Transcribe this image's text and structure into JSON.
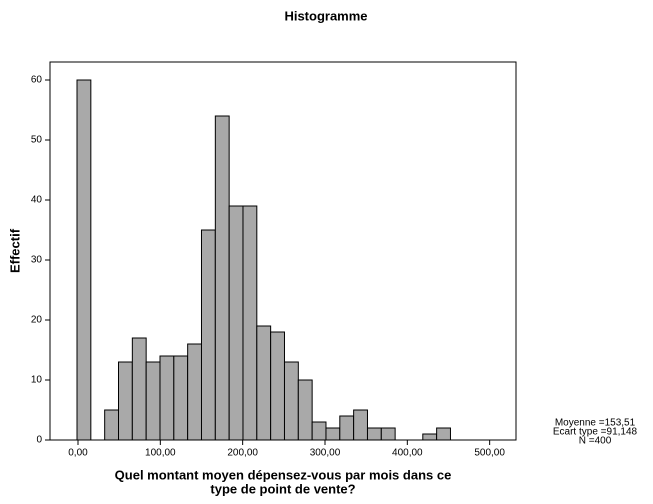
{
  "chart_data": {
    "type": "histogram",
    "title": "Histogramme",
    "xlabel": [
      "Quel montant moyen dépensez-vous par mois dans ce",
      "type de point de vente?"
    ],
    "ylabel": "Effectif",
    "bins": [
      -1.2,
      15.6,
      32.4,
      49.2,
      66,
      82.8,
      99.6,
      116.4,
      133.2,
      150,
      166.8,
      183.6,
      200.4,
      217.2,
      234,
      250.8,
      267.6,
      284.4,
      301.2,
      318,
      334.8,
      351.6,
      368.4,
      385.2,
      402,
      418.8,
      435.6,
      452.4
    ],
    "values": [
      60,
      0,
      5,
      13,
      17,
      13,
      14,
      14,
      16,
      35,
      54,
      39,
      39,
      19,
      18,
      13,
      10,
      3,
      2,
      4,
      5,
      2,
      2,
      0,
      0,
      1,
      2
    ],
    "color": "#a9a9a9",
    "xlim": [
      -34,
      532
    ],
    "ylim": [
      0,
      63
    ],
    "xticks": [
      {
        "value": 0,
        "label": "0,00"
      },
      {
        "value": 100,
        "label": "100,00"
      },
      {
        "value": 200,
        "label": "200,00"
      },
      {
        "value": 300,
        "label": "300,00"
      },
      {
        "value": 400,
        "label": "400,00"
      },
      {
        "value": 500,
        "label": "500,00"
      }
    ],
    "yticks": [
      0,
      10,
      20,
      30,
      40,
      50,
      60
    ],
    "stats": [
      "Moyenne =153,51",
      "Ecart type =91,148",
      "N =400"
    ]
  }
}
